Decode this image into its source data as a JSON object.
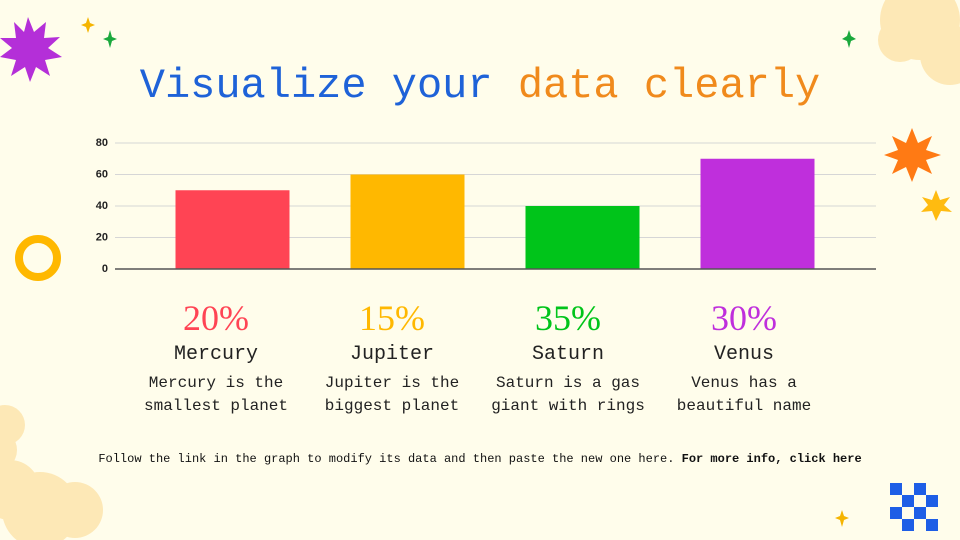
{
  "header": {
    "title_part1": "Visualize your",
    "title_part2": "data clearly"
  },
  "chart_data": {
    "type": "bar",
    "categories": [
      null,
      null,
      null,
      null
    ],
    "values": [
      50,
      60,
      40,
      70
    ],
    "colors": [
      "#ff4454",
      "#ffb800",
      "#00c41a",
      "#bf2fdc"
    ],
    "ylim": [
      0,
      80
    ],
    "yticks": [
      0,
      20,
      40,
      60,
      80
    ],
    "grid": true
  },
  "items": [
    {
      "percent": "20%",
      "name": "Mercury",
      "description": "Mercury is the smallest planet"
    },
    {
      "percent": "15%",
      "name": "Jupiter",
      "description": "Jupiter is the biggest planet"
    },
    {
      "percent": "35%",
      "name": "Saturn",
      "description": "Saturn is a gas giant with rings"
    },
    {
      "percent": "30%",
      "name": "Venus",
      "description": "Venus has a beautiful name"
    }
  ],
  "footer": {
    "text": "Follow the link in the graph to modify its data and then paste the new one here.",
    "link": "For more info, click here"
  }
}
